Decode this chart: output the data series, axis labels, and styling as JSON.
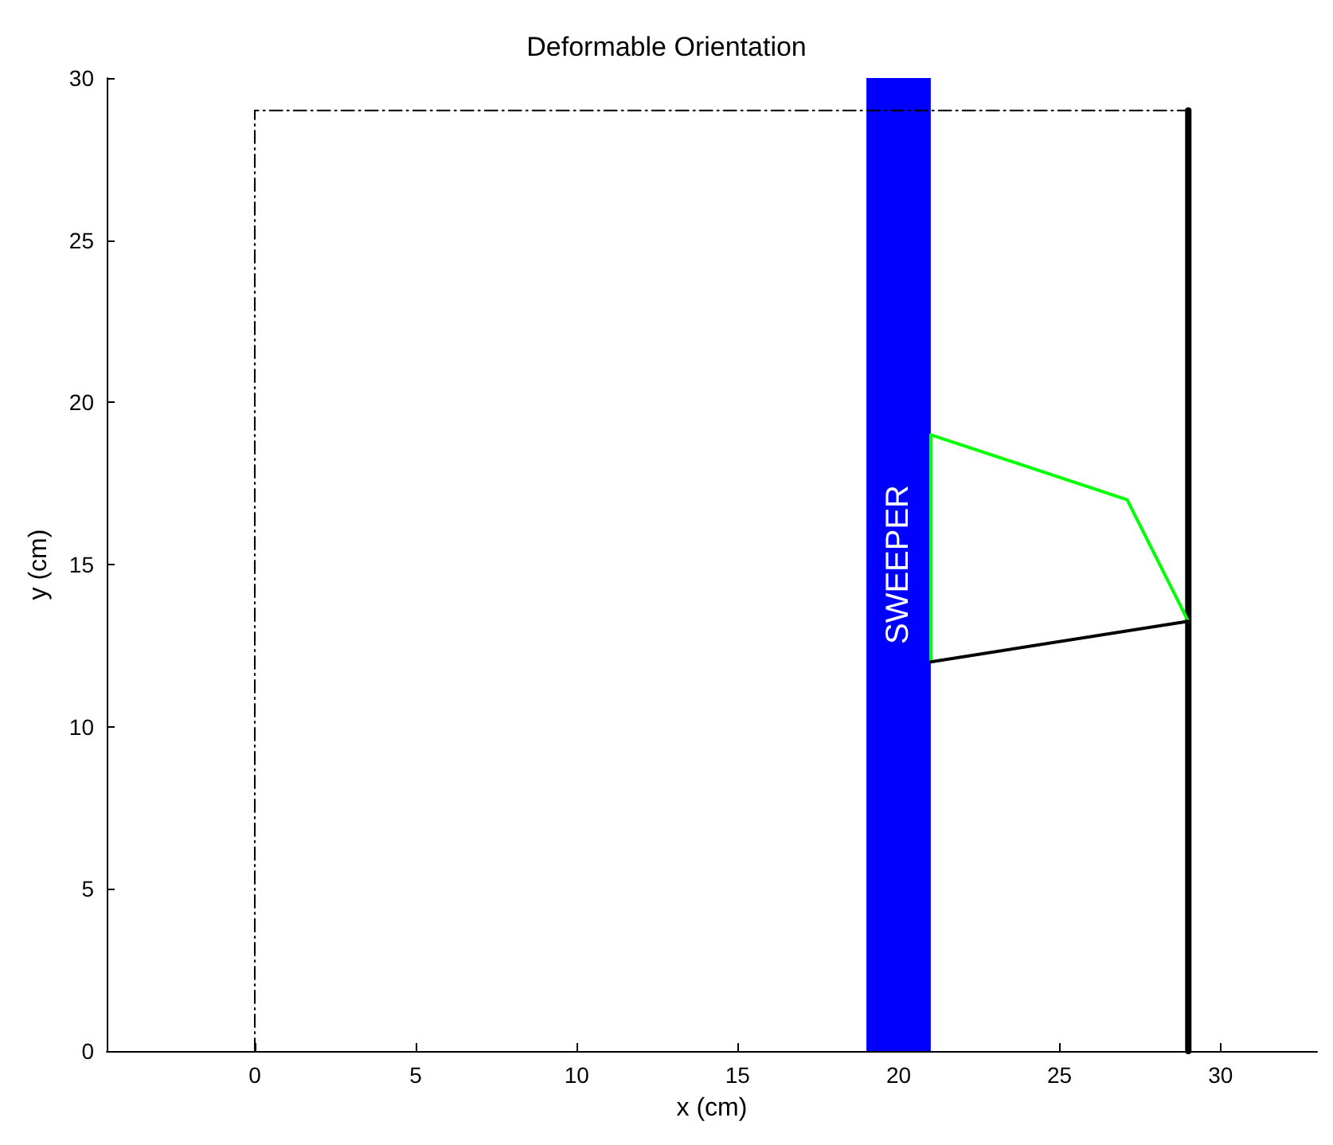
{
  "chart_data": {
    "type": "line",
    "title": "Deformable Orientation",
    "xlabel": "x (cm)",
    "ylabel": "y (cm)",
    "xlim": [
      -4.6,
      33
    ],
    "ylim": [
      0,
      30
    ],
    "xticks": [
      0,
      5,
      10,
      15,
      20,
      25,
      30
    ],
    "yticks": [
      0,
      5,
      10,
      15,
      20,
      25,
      30
    ],
    "grid": false,
    "marker": "none",
    "series": [
      {
        "color": "#000000",
        "line_style": "dashed",
        "x": [
          0,
          0,
          29
        ],
        "values": [
          0,
          29,
          29
        ]
      },
      {
        "color": "#000000",
        "x": [
          29,
          29
        ],
        "values": [
          0,
          29
        ]
      },
      {
        "color": "#00ff00",
        "x": [
          21,
          21,
          27.1,
          29
        ],
        "values": [
          12,
          19,
          17,
          13.25
        ]
      },
      {
        "color": "#000000",
        "x": [
          21,
          29
        ],
        "values": [
          12,
          13.25
        ]
      }
    ],
    "bands": [
      {
        "axis": "x",
        "from": 19,
        "to": 21,
        "label": "SWEEPER",
        "color": "#0000ff"
      }
    ]
  }
}
